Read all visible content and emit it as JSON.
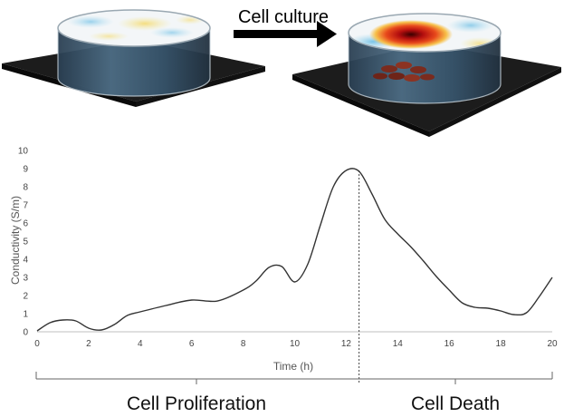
{
  "header": {
    "arrow_label": "Cell culture"
  },
  "phases": [
    {
      "label": "Cell Proliferation",
      "start": 0,
      "end": 12.5
    },
    {
      "label": "Cell Death",
      "start": 12.5,
      "end": 20
    }
  ],
  "colors": {
    "line": "#333333",
    "axis": "#bfbfbf",
    "platform": "#1c1c1c",
    "dish_liquid": "#36536a",
    "heat_hot": "#c81010",
    "heat_warm": "#f5c23a",
    "heat_cool": "#7ec8e8"
  },
  "chart_data": {
    "type": "line",
    "xlabel": "Time (h)",
    "ylabel": "Conductivity (S/m)",
    "xlim": [
      0,
      20
    ],
    "ylim": [
      0,
      10
    ],
    "x_ticks": [
      0,
      2,
      4,
      6,
      8,
      10,
      12,
      14,
      16,
      18,
      20
    ],
    "y_ticks": [
      0,
      1,
      2,
      3,
      4,
      5,
      6,
      7,
      8,
      9,
      10
    ],
    "grid": false,
    "marker_x": 12.5,
    "series": [
      {
        "x": [
          0,
          0.5,
          1,
          1.5,
          2,
          2.5,
          3,
          3.5,
          4,
          5,
          6,
          7,
          8,
          8.5,
          9,
          9.5,
          10,
          10.5,
          11,
          11.5,
          12,
          12.5,
          13,
          13.5,
          14,
          14.5,
          15,
          15.5,
          16,
          16.5,
          17,
          17.5,
          18,
          18.5,
          19,
          19.5,
          20
        ],
        "y": [
          0.05,
          0.5,
          0.65,
          0.6,
          0.2,
          0.1,
          0.4,
          0.9,
          1.1,
          1.45,
          1.75,
          1.7,
          2.3,
          2.8,
          3.55,
          3.6,
          2.75,
          3.7,
          5.9,
          8.0,
          8.9,
          8.85,
          7.6,
          6.2,
          5.4,
          4.7,
          3.9,
          3.05,
          2.3,
          1.6,
          1.35,
          1.3,
          1.15,
          0.95,
          1.05,
          1.95,
          3.0
        ]
      }
    ]
  }
}
